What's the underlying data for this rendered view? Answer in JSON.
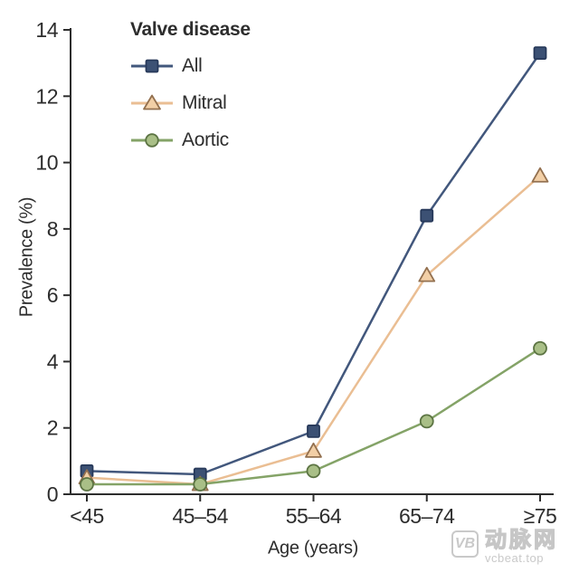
{
  "chart_data": {
    "type": "line",
    "legend_title": "Valve disease",
    "legend_position": "top-left inside plot",
    "xlabel": "Age (years)",
    "ylabel": "Prevalence (%)",
    "categories": [
      "<45",
      "45–54",
      "55–64",
      "65–74",
      "≥75"
    ],
    "ylim": [
      0,
      14
    ],
    "yticks": [
      0,
      2,
      4,
      6,
      8,
      10,
      12,
      14
    ],
    "grid": false,
    "axis_color": "#2d2d2d",
    "text_color": "#2d2d2d",
    "series": [
      {
        "name": "All",
        "marker": "square",
        "values": [
          0.7,
          0.6,
          1.9,
          8.4,
          13.3
        ],
        "line_color": "#42577c",
        "marker_fill": "#3c5174",
        "marker_edge": "#27395a"
      },
      {
        "name": "Mitral",
        "marker": "triangle",
        "values": [
          0.5,
          0.3,
          1.3,
          6.6,
          9.6
        ],
        "line_color": "#eabe93",
        "marker_fill": "#f2cfa6",
        "marker_edge": "#93704f"
      },
      {
        "name": "Aortic",
        "marker": "circle",
        "values": [
          0.3,
          0.3,
          0.7,
          2.2,
          4.4
        ],
        "line_color": "#84a367",
        "marker_fill": "#a9bf87",
        "marker_edge": "#5c7443"
      }
    ]
  },
  "watermark": {
    "logo_text": "VB",
    "brand_text": "动脉网",
    "site_text": "vcbeat.top",
    "color": "#c9c9c9"
  }
}
